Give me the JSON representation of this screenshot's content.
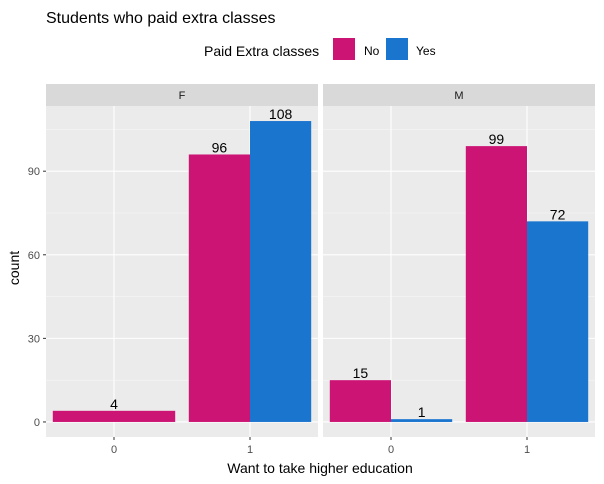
{
  "chart_data": {
    "type": "bar",
    "title": "Students who paid extra classes",
    "xlabel": "Want to take higher education",
    "ylabel": "count",
    "ylim": [
      -5.4,
      113.4
    ],
    "yticks": [
      0,
      30,
      60,
      90
    ],
    "grid": true,
    "legend": {
      "title": "Paid Extra classes",
      "position": "top",
      "entries": [
        {
          "label": "No",
          "color": "#cc1475"
        },
        {
          "label": "Yes",
          "color": "#1a75cf"
        }
      ]
    },
    "facets": [
      {
        "label": "F",
        "categories": [
          "0",
          "1"
        ],
        "series": [
          {
            "name": "No",
            "values": [
              4,
              96
            ]
          },
          {
            "name": "Yes",
            "values": [
              null,
              108
            ]
          }
        ]
      },
      {
        "label": "M",
        "categories": [
          "0",
          "1"
        ],
        "series": [
          {
            "name": "No",
            "values": [
              15,
              99
            ]
          },
          {
            "name": "Yes",
            "values": [
              1,
              72
            ]
          }
        ]
      }
    ]
  }
}
